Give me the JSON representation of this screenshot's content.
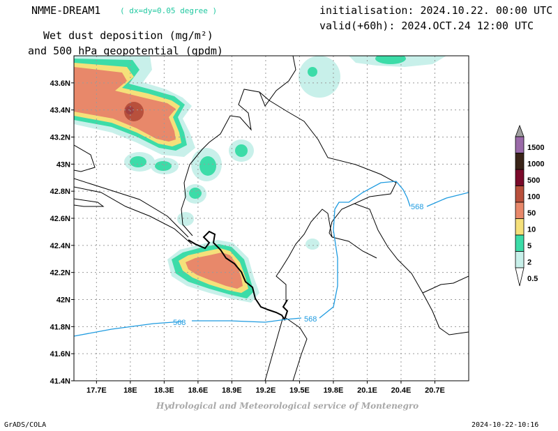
{
  "header": {
    "model": "NMME-DREAM1",
    "resolution": "( dx=dy=0.05 degree )",
    "init": "initialisation: 2024.10.22. 00:00 UTC",
    "valid": "valid(+60h): 2024.OCT.24 12:00 UTC",
    "title_line1": "Wet dust deposition (mg/m²)",
    "title_line2": "and 500 hPa geopotential (gpdm)"
  },
  "map": {
    "lat_labels": [
      "43.6N",
      "43.4N",
      "43.2N",
      "43N",
      "42.8N",
      "42.6N",
      "42.4N",
      "42.2N",
      "42N",
      "41.8N",
      "41.6N",
      "41.4N"
    ],
    "lat_values": [
      43.6,
      43.4,
      43.2,
      43.0,
      42.8,
      42.6,
      42.4,
      42.2,
      42.0,
      41.8,
      41.6,
      41.4
    ],
    "lon_labels": [
      "17.7E",
      "18E",
      "18.3E",
      "18.6E",
      "18.9E",
      "19.2E",
      "19.5E",
      "19.8E",
      "20.1E",
      "20.4E",
      "20.7E"
    ],
    "lon_values": [
      17.7,
      18.0,
      18.3,
      18.6,
      18.9,
      19.2,
      19.5,
      19.8,
      20.1,
      20.4,
      20.7
    ],
    "lon_range": [
      17.5,
      21.0
    ],
    "lat_range": [
      41.4,
      43.8
    ],
    "contour_label": "568",
    "contour_color": "#1e9be0"
  },
  "legend": {
    "levels": [
      "1500",
      "1000",
      "500",
      "100",
      "50",
      "10",
      "5",
      "2",
      "0.5"
    ],
    "colors": [
      "#a0a0a0",
      "#9a6aa8",
      "#3a2418",
      "#7a0a2a",
      "#b8503c",
      "#e8886a",
      "#f5e07a",
      "#3cdca8",
      "#c8f0ea",
      "#ffffff"
    ]
  },
  "footer": {
    "left": "GrADS/COLA",
    "center": "Hydrological and Meteorological service of Montenegro",
    "right": "2024-10-22-10:16"
  }
}
